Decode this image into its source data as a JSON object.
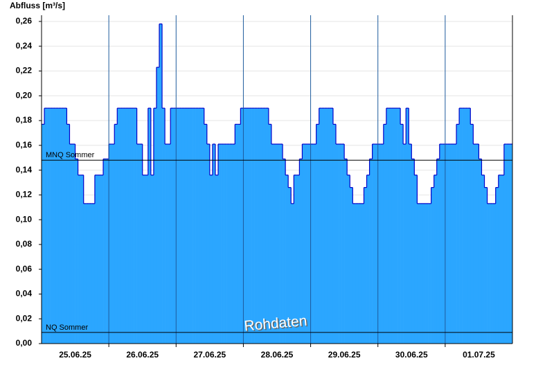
{
  "chart_data": {
    "type": "step-area",
    "title": "Abfluss [m³/s]",
    "x": [
      0,
      1,
      2,
      3,
      4,
      5,
      6,
      7,
      8,
      9,
      10,
      11,
      12,
      13,
      14,
      15,
      16,
      17,
      18,
      19,
      20,
      21,
      22,
      23,
      24,
      25,
      26,
      27,
      28,
      29,
      30,
      31,
      32,
      33,
      34,
      35,
      36,
      37,
      38,
      39,
      40,
      41,
      42,
      43,
      44,
      45,
      46,
      47,
      48,
      49,
      50,
      51,
      52,
      53,
      54,
      55,
      56,
      57,
      58,
      59,
      60,
      61,
      62,
      63,
      64,
      65,
      66,
      67,
      68,
      69,
      70,
      71,
      72,
      73,
      74,
      75,
      76,
      77,
      78,
      79,
      80,
      81,
      82,
      83,
      84,
      85,
      86,
      87,
      88,
      89,
      90,
      91,
      92,
      93,
      94,
      95,
      96,
      97,
      98,
      99,
      100,
      101,
      102,
      103,
      104,
      105,
      106,
      107,
      108,
      109,
      110,
      111,
      112,
      113,
      114,
      115,
      116,
      117,
      118,
      119,
      120,
      121,
      122,
      123,
      124,
      125,
      126,
      127,
      128,
      129,
      130,
      131,
      132,
      133,
      134,
      135,
      136,
      137,
      138,
      139,
      140,
      141,
      142,
      143,
      144,
      145,
      146,
      147,
      148,
      149,
      150,
      151,
      152,
      153,
      154,
      155,
      156,
      157,
      158,
      159,
      160,
      161,
      162,
      163,
      164,
      165,
      166,
      167
    ],
    "values": [
      0.177,
      0.19,
      0.19,
      0.19,
      0.19,
      0.19,
      0.19,
      0.19,
      0.19,
      0.177,
      0.161,
      0.161,
      0.149,
      0.136,
      0.136,
      0.113,
      0.113,
      0.113,
      0.113,
      0.136,
      0.136,
      0.136,
      0.149,
      0.149,
      0.161,
      0.161,
      0.177,
      0.19,
      0.19,
      0.19,
      0.19,
      0.19,
      0.19,
      0.19,
      0.161,
      0.161,
      0.136,
      0.136,
      0.19,
      0.136,
      0.19,
      0.223,
      0.258,
      0.19,
      0.161,
      0.161,
      0.19,
      0.19,
      0.19,
      0.19,
      0.19,
      0.19,
      0.19,
      0.19,
      0.19,
      0.19,
      0.19,
      0.19,
      0.177,
      0.161,
      0.136,
      0.161,
      0.136,
      0.161,
      0.161,
      0.161,
      0.161,
      0.161,
      0.161,
      0.177,
      0.177,
      0.19,
      0.19,
      0.19,
      0.19,
      0.19,
      0.19,
      0.19,
      0.19,
      0.19,
      0.19,
      0.177,
      0.161,
      0.161,
      0.161,
      0.161,
      0.149,
      0.136,
      0.126,
      0.113,
      0.136,
      0.136,
      0.149,
      0.161,
      0.161,
      0.161,
      0.161,
      0.161,
      0.177,
      0.19,
      0.19,
      0.19,
      0.19,
      0.19,
      0.177,
      0.161,
      0.161,
      0.161,
      0.149,
      0.136,
      0.126,
      0.113,
      0.113,
      0.113,
      0.113,
      0.126,
      0.136,
      0.149,
      0.161,
      0.161,
      0.161,
      0.161,
      0.177,
      0.19,
      0.19,
      0.19,
      0.19,
      0.19,
      0.177,
      0.161,
      0.19,
      0.161,
      0.149,
      0.136,
      0.113,
      0.113,
      0.113,
      0.113,
      0.113,
      0.126,
      0.136,
      0.149,
      0.161,
      0.161,
      0.161,
      0.161,
      0.161,
      0.161,
      0.177,
      0.19,
      0.19,
      0.19,
      0.19,
      0.177,
      0.161,
      0.161,
      0.149,
      0.136,
      0.126,
      0.113,
      0.113,
      0.113,
      0.126,
      0.136,
      0.136,
      0.161,
      0.161,
      0.161
    ],
    "fill_color": "#2ba6ff",
    "line_color": "#0000c8",
    "xlim": [
      0,
      168
    ],
    "xticks": [
      {
        "value": 12,
        "label": "25.06.25"
      },
      {
        "value": 36,
        "label": "26.06.25"
      },
      {
        "value": 60,
        "label": "27.06.25"
      },
      {
        "value": 84,
        "label": "28.06.25"
      },
      {
        "value": 108,
        "label": "29.06.25"
      },
      {
        "value": 132,
        "label": "30.06.25"
      },
      {
        "value": 156,
        "label": "01.07.25"
      }
    ],
    "xgrid": [
      24,
      48,
      72,
      96,
      120,
      144
    ],
    "ylim": [
      0,
      0.265
    ],
    "yticks": [
      {
        "value": 0,
        "label": "0,00"
      },
      {
        "value": 0.02,
        "label": "0,02"
      },
      {
        "value": 0.04,
        "label": "0,04"
      },
      {
        "value": 0.06,
        "label": "0,06"
      },
      {
        "value": 0.08,
        "label": "0,08"
      },
      {
        "value": 0.1,
        "label": "0,10"
      },
      {
        "value": 0.12,
        "label": "0,12"
      },
      {
        "value": 0.14,
        "label": "0,14"
      },
      {
        "value": 0.16,
        "label": "0,16"
      },
      {
        "value": 0.18,
        "label": "0,18"
      },
      {
        "value": 0.2,
        "label": "0,20"
      },
      {
        "value": 0.22,
        "label": "0,22"
      },
      {
        "value": 0.24,
        "label": "0,24"
      },
      {
        "value": 0.26,
        "label": "0,26"
      }
    ],
    "grid": true,
    "ref_lines": [
      {
        "label": "MNQ Sommer",
        "value": 0.148
      },
      {
        "label": "NQ Sommer",
        "value": 0.009
      }
    ],
    "watermark": "Rohdaten"
  }
}
